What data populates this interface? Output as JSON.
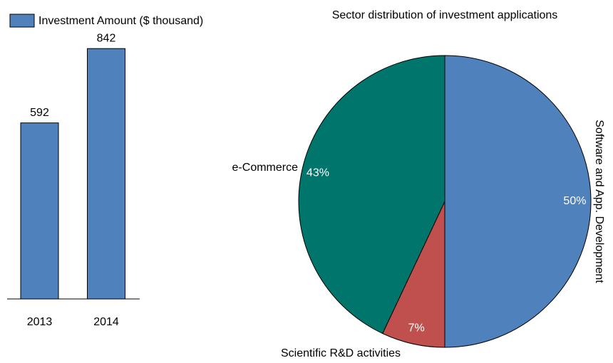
{
  "chart_data": [
    {
      "type": "bar",
      "categories": [
        "2013",
        "2014"
      ],
      "series": [
        {
          "name": "Investment Amount ($ thousand)",
          "color": "#4f81bd",
          "values": [
            592,
            842
          ]
        }
      ],
      "ylim": [
        0,
        900
      ]
    },
    {
      "type": "pie",
      "title": "Sector distribution of investment applications",
      "categories": [
        "Software and App. Development",
        "Scientific R&D activities",
        "e-Commerce"
      ],
      "values": [
        50,
        7,
        43
      ],
      "value_labels": [
        "50%",
        "7%",
        "43%"
      ],
      "colors": [
        "#4f81bd",
        "#c0504d",
        "#00756b"
      ]
    }
  ]
}
